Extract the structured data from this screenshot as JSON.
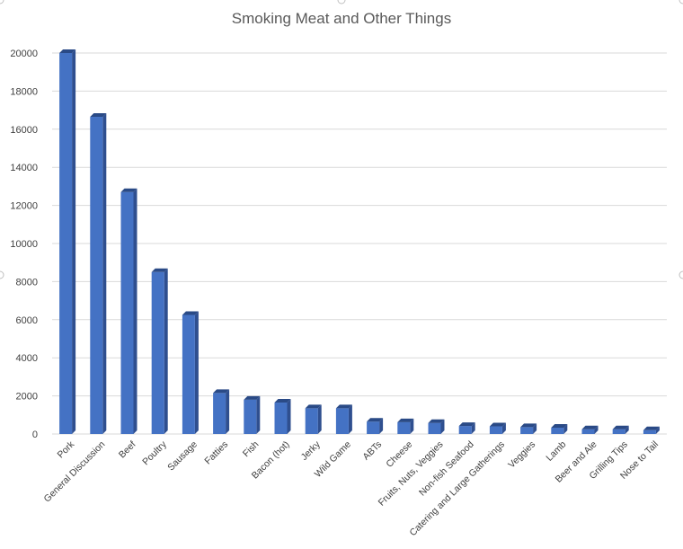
{
  "chart_data": {
    "type": "bar",
    "title": "Smoking Meat and Other Things",
    "xlabel": "",
    "ylabel": "",
    "ylim": [
      0,
      20000
    ],
    "yticks": [
      0,
      2000,
      4000,
      6000,
      8000,
      10000,
      12000,
      14000,
      16000,
      18000,
      20000
    ],
    "grid": true,
    "style": "3d-column",
    "colors": {
      "bar_front": "#4472c4",
      "bar_side": "#2f4f8f",
      "bar_top": "#2a4a86",
      "grid": "#d9d9d9"
    },
    "categories": [
      "Pork",
      "General Discussion",
      "Beef",
      "Poultry",
      "Sausage",
      "Fatties",
      "Fish",
      "Bacon (hot)",
      "Jerky",
      "Wild Game",
      "ABTs",
      "Cheese",
      "Fruits, Nuts, Veggies",
      "Non-fish Seafood",
      "Catering and Large Gatherings",
      "Veggies",
      "Lamb",
      "Beer and Ale",
      "Grilling Tips",
      "Nose to Tail"
    ],
    "values": [
      20000,
      16650,
      12700,
      8500,
      6250,
      2150,
      1800,
      1650,
      1350,
      1350,
      650,
      620,
      580,
      420,
      400,
      360,
      330,
      250,
      250,
      200
    ]
  }
}
